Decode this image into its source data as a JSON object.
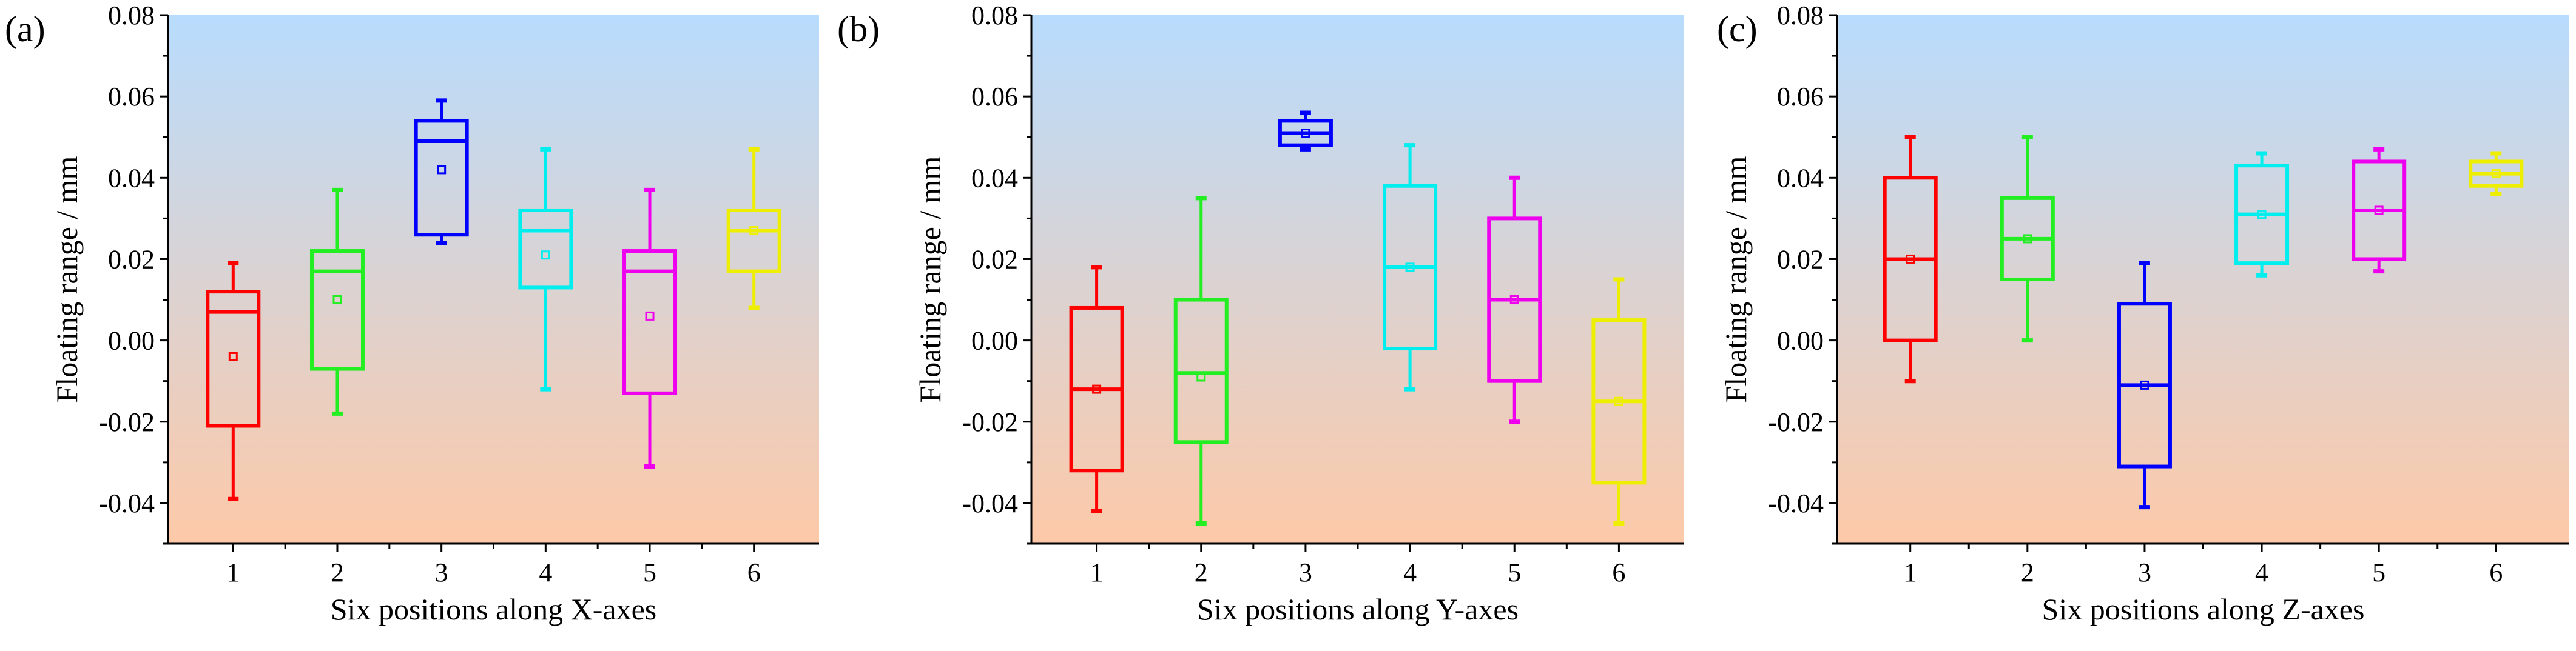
{
  "chart_data": [
    {
      "type": "box",
      "panel_label": "(a)",
      "xlabel": "Six positions along X-axes",
      "ylabel": "Floating range / mm",
      "categories": [
        "1",
        "2",
        "3",
        "4",
        "5",
        "6"
      ],
      "ylim": [
        -0.05,
        0.08
      ],
      "yticks": [
        "-0.04",
        "-0.02",
        "0.00",
        "0.02",
        "0.04",
        "0.06",
        "0.08"
      ],
      "boxes": [
        {
          "category": "1",
          "color": "#ff0000",
          "min": -0.039,
          "q1": -0.021,
          "median": 0.007,
          "q3": 0.012,
          "max": 0.019,
          "mean": -0.004
        },
        {
          "category": "2",
          "color": "#22ee22",
          "min": -0.018,
          "q1": -0.007,
          "median": 0.017,
          "q3": 0.022,
          "max": 0.037,
          "mean": 0.01
        },
        {
          "category": "3",
          "color": "#0000ff",
          "min": 0.024,
          "q1": 0.026,
          "median": 0.049,
          "q3": 0.054,
          "max": 0.059,
          "mean": 0.042
        },
        {
          "category": "4",
          "color": "#00eeee",
          "min": -0.012,
          "q1": 0.013,
          "median": 0.027,
          "q3": 0.032,
          "max": 0.047,
          "mean": 0.021
        },
        {
          "category": "5",
          "color": "#ee00ee",
          "min": -0.031,
          "q1": -0.013,
          "median": 0.017,
          "q3": 0.022,
          "max": 0.037,
          "mean": 0.006
        },
        {
          "category": "6",
          "color": "#eeee00",
          "min": 0.008,
          "q1": 0.017,
          "median": 0.027,
          "q3": 0.032,
          "max": 0.047,
          "mean": 0.027
        }
      ]
    },
    {
      "type": "box",
      "panel_label": "(b)",
      "xlabel": "Six positions along Y-axes",
      "ylabel": "Floating range / mm",
      "categories": [
        "1",
        "2",
        "3",
        "4",
        "5",
        "6"
      ],
      "ylim": [
        -0.05,
        0.08
      ],
      "yticks": [
        "-0.04",
        "-0.02",
        "0.00",
        "0.02",
        "0.04",
        "0.06",
        "0.08"
      ],
      "boxes": [
        {
          "category": "1",
          "color": "#ff0000",
          "min": -0.042,
          "q1": -0.032,
          "median": -0.012,
          "q3": 0.008,
          "max": 0.018,
          "mean": -0.012
        },
        {
          "category": "2",
          "color": "#22ee22",
          "min": -0.045,
          "q1": -0.025,
          "median": -0.008,
          "q3": 0.01,
          "max": 0.035,
          "mean": -0.009
        },
        {
          "category": "3",
          "color": "#0000ff",
          "min": 0.047,
          "q1": 0.048,
          "median": 0.051,
          "q3": 0.054,
          "max": 0.056,
          "mean": 0.051
        },
        {
          "category": "4",
          "color": "#00eeee",
          "min": -0.012,
          "q1": -0.002,
          "median": 0.018,
          "q3": 0.038,
          "max": 0.048,
          "mean": 0.018
        },
        {
          "category": "5",
          "color": "#ee00ee",
          "min": -0.02,
          "q1": -0.01,
          "median": 0.01,
          "q3": 0.03,
          "max": 0.04,
          "mean": 0.01
        },
        {
          "category": "6",
          "color": "#eeee00",
          "min": -0.045,
          "q1": -0.035,
          "median": -0.015,
          "q3": 0.005,
          "max": 0.015,
          "mean": -0.015
        }
      ]
    },
    {
      "type": "box",
      "panel_label": "(c)",
      "xlabel": "Six positions along Z-axes",
      "ylabel": "Floating range / mm",
      "categories": [
        "1",
        "2",
        "3",
        "4",
        "5",
        "6"
      ],
      "ylim": [
        -0.05,
        0.08
      ],
      "yticks": [
        "-0.04",
        "-0.02",
        "0.00",
        "0.02",
        "0.04",
        "0.06",
        "0.08"
      ],
      "boxes": [
        {
          "category": "1",
          "color": "#ff0000",
          "min": -0.01,
          "q1": 0.0,
          "median": 0.02,
          "q3": 0.04,
          "max": 0.05,
          "mean": 0.02
        },
        {
          "category": "2",
          "color": "#22ee22",
          "min": 0.0,
          "q1": 0.015,
          "median": 0.025,
          "q3": 0.035,
          "max": 0.05,
          "mean": 0.025
        },
        {
          "category": "3",
          "color": "#0000ff",
          "min": -0.041,
          "q1": -0.031,
          "median": -0.011,
          "q3": 0.009,
          "max": 0.019,
          "mean": -0.011
        },
        {
          "category": "4",
          "color": "#00eeee",
          "min": 0.016,
          "q1": 0.019,
          "median": 0.031,
          "q3": 0.043,
          "max": 0.046,
          "mean": 0.031
        },
        {
          "category": "5",
          "color": "#ee00ee",
          "min": 0.017,
          "q1": 0.02,
          "median": 0.032,
          "q3": 0.044,
          "max": 0.047,
          "mean": 0.032
        },
        {
          "category": "6",
          "color": "#eeee00",
          "min": 0.036,
          "q1": 0.038,
          "median": 0.041,
          "q3": 0.044,
          "max": 0.046,
          "mean": 0.041
        }
      ]
    }
  ],
  "background_gradient": {
    "top": "#b8dcfd",
    "bottom": "#fdc9a8"
  }
}
